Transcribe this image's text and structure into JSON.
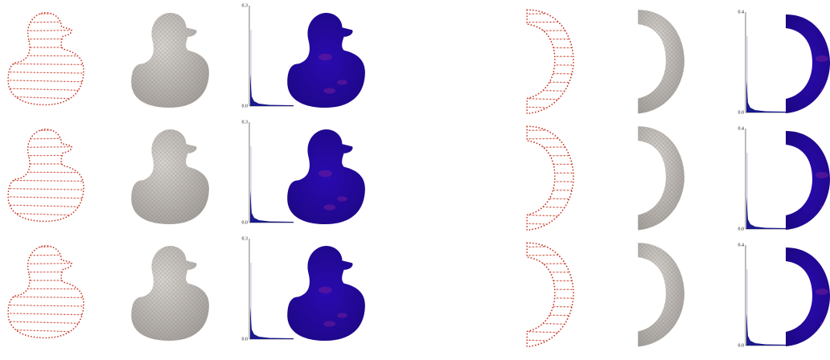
{
  "left": {
    "rows": [
      {
        "y_max": "0.3",
        "y_min": "0.0"
      },
      {
        "y_max": "0.3",
        "y_min": "0.0"
      },
      {
        "y_max": "0.3",
        "y_min": "0.0"
      }
    ]
  },
  "right": {
    "rows": [
      {
        "y_max": "0.4",
        "y_min": "0.0"
      },
      {
        "y_max": "0.4",
        "y_min": "0.0"
      },
      {
        "y_max": "0.4",
        "y_min": "0.0"
      }
    ]
  }
}
